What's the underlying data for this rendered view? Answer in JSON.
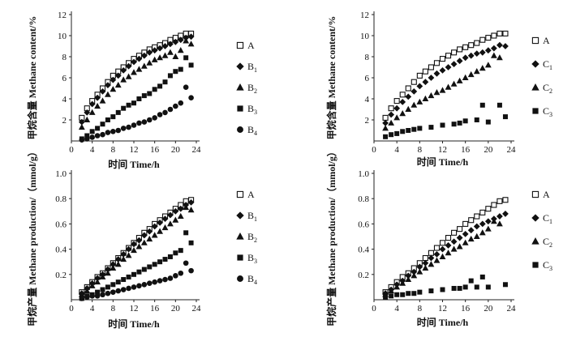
{
  "figure_title": "",
  "markers": {
    "A": "open-square",
    "B1": "diamond",
    "B2": "triangle",
    "B3": "square",
    "B4": "circle",
    "C1": "diamond",
    "C2": "triangle",
    "C3": "square"
  },
  "colors": {
    "ink": "#111111",
    "axis": "#222222"
  },
  "chart_data": [
    {
      "type": "scatter",
      "id": "content-b",
      "xlabel": "时间  Time/h",
      "ylabel": "甲烷含量  Methane content/%",
      "xlim": [
        0,
        24
      ],
      "ylim": [
        0,
        12
      ],
      "xticks": [
        0,
        4,
        8,
        12,
        16,
        20,
        24
      ],
      "yticks": [
        2,
        4,
        6,
        8,
        10,
        12
      ],
      "x_tick_labels": [
        "0",
        "4",
        "8",
        "12",
        "16",
        "20",
        "24"
      ],
      "y_tick_labels": [
        "2",
        "4",
        "6",
        "8",
        "10",
        "12"
      ],
      "grid": false,
      "legend": "right",
      "series": [
        {
          "name": "A",
          "base": "A",
          "sub": "",
          "marker": "open-square",
          "x": [
            2,
            3,
            4,
            5,
            6,
            7,
            8,
            9,
            10,
            11,
            12,
            13,
            14,
            15,
            16,
            17,
            18,
            19,
            20,
            21,
            22,
            23
          ],
          "y": [
            2.2,
            3.1,
            3.8,
            4.4,
            5.0,
            5.6,
            6.2,
            6.6,
            7.0,
            7.4,
            7.8,
            8.1,
            8.4,
            8.7,
            8.9,
            9.1,
            9.3,
            9.6,
            9.8,
            10.0,
            10.2,
            10.2
          ]
        },
        {
          "name": "B1",
          "base": "B",
          "sub": "1",
          "marker": "diamond",
          "x": [
            2,
            3,
            4,
            5,
            6,
            7,
            8,
            9,
            10,
            11,
            12,
            13,
            14,
            15,
            16,
            17,
            18,
            19,
            20,
            21,
            22,
            23
          ],
          "y": [
            1.8,
            2.7,
            3.5,
            4.1,
            4.7,
            5.3,
            5.8,
            6.2,
            6.7,
            7.1,
            7.5,
            7.8,
            8.1,
            8.4,
            8.6,
            8.8,
            9.0,
            9.2,
            9.4,
            9.6,
            9.8,
            9.9
          ]
        },
        {
          "name": "B2",
          "base": "B",
          "sub": "2",
          "marker": "triangle",
          "x": [
            2,
            3,
            4,
            5,
            6,
            7,
            8,
            9,
            10,
            11,
            12,
            13,
            14,
            15,
            16,
            17,
            18,
            19,
            20,
            21,
            22,
            23
          ],
          "y": [
            1.3,
            2.0,
            2.7,
            3.3,
            3.8,
            4.4,
            4.9,
            5.3,
            5.8,
            6.1,
            6.5,
            6.8,
            7.1,
            7.4,
            7.7,
            7.9,
            8.1,
            8.4,
            8.0,
            8.6,
            9.5,
            9.2
          ]
        },
        {
          "name": "B3",
          "base": "B",
          "sub": "3",
          "marker": "square",
          "x": [
            2,
            3,
            4,
            5,
            6,
            7,
            8,
            9,
            10,
            11,
            12,
            13,
            14,
            15,
            16,
            17,
            18,
            19,
            20,
            21,
            22,
            23
          ],
          "y": [
            0.2,
            0.5,
            0.9,
            1.2,
            1.6,
            2.0,
            2.3,
            2.7,
            3.1,
            3.4,
            3.6,
            4.0,
            4.3,
            4.5,
            4.9,
            5.2,
            5.6,
            6.2,
            6.6,
            6.8,
            7.9,
            7.2
          ]
        },
        {
          "name": "B4",
          "base": "B",
          "sub": "4",
          "marker": "circle",
          "x": [
            2,
            3,
            4,
            5,
            6,
            7,
            8,
            9,
            10,
            11,
            12,
            13,
            14,
            15,
            16,
            17,
            18,
            19,
            20,
            21,
            22,
            23
          ],
          "y": [
            0.1,
            0.2,
            0.35,
            0.5,
            0.6,
            0.8,
            0.9,
            1.0,
            1.2,
            1.3,
            1.5,
            1.7,
            1.8,
            2.0,
            2.2,
            2.5,
            2.7,
            3.0,
            3.3,
            3.6,
            5.1,
            4.1
          ]
        }
      ]
    },
    {
      "type": "scatter",
      "id": "content-c",
      "xlabel": "时间  Time/h",
      "ylabel": "甲烷含量  Methane content/%",
      "xlim": [
        0,
        24
      ],
      "ylim": [
        0,
        12
      ],
      "xticks": [
        0,
        4,
        8,
        12,
        16,
        20,
        24
      ],
      "yticks": [
        2,
        4,
        6,
        8,
        10,
        12
      ],
      "x_tick_labels": [
        "0",
        "4",
        "8",
        "12",
        "16",
        "20",
        "24"
      ],
      "y_tick_labels": [
        "2",
        "4",
        "6",
        "8",
        "10",
        "12"
      ],
      "grid": false,
      "legend": "right",
      "series": [
        {
          "name": "A",
          "base": "A",
          "sub": "",
          "marker": "open-square",
          "x": [
            2,
            3,
            4,
            5,
            6,
            7,
            8,
            9,
            10,
            11,
            12,
            13,
            14,
            15,
            16,
            17,
            18,
            19,
            20,
            21,
            22,
            23
          ],
          "y": [
            2.2,
            3.1,
            3.8,
            4.4,
            5.0,
            5.6,
            6.2,
            6.6,
            7.0,
            7.4,
            7.8,
            8.1,
            8.4,
            8.7,
            8.9,
            9.1,
            9.3,
            9.6,
            9.8,
            10.0,
            10.2,
            10.2
          ]
        },
        {
          "name": "C1",
          "base": "C",
          "sub": "1",
          "marker": "diamond",
          "x": [
            2,
            3,
            4,
            5,
            6,
            7,
            8,
            9,
            10,
            11,
            12,
            13,
            14,
            15,
            16,
            17,
            18,
            19,
            20,
            21,
            22,
            23
          ],
          "y": [
            1.7,
            2.5,
            3.1,
            3.7,
            4.2,
            4.7,
            5.2,
            5.6,
            6.0,
            6.4,
            6.7,
            7.0,
            7.3,
            7.6,
            7.9,
            8.1,
            8.3,
            8.4,
            8.6,
            8.8,
            9.1,
            9.0
          ]
        },
        {
          "name": "C2",
          "base": "C",
          "sub": "2",
          "marker": "triangle",
          "x": [
            2,
            3,
            4,
            5,
            6,
            7,
            8,
            9,
            10,
            11,
            12,
            13,
            14,
            15,
            16,
            17,
            18,
            19,
            20,
            21,
            22
          ],
          "y": [
            1.2,
            1.7,
            2.2,
            2.6,
            3.0,
            3.4,
            3.7,
            4.0,
            4.3,
            4.6,
            4.8,
            5.1,
            5.4,
            5.7,
            6.0,
            6.3,
            6.6,
            6.9,
            7.2,
            8.1,
            7.9
          ]
        },
        {
          "name": "C3",
          "base": "C",
          "sub": "3",
          "marker": "square",
          "x": [
            2,
            3,
            4,
            5,
            6,
            7,
            8,
            10,
            12,
            14,
            15,
            16,
            18,
            19,
            20,
            22,
            23
          ],
          "y": [
            0.4,
            0.6,
            0.7,
            0.9,
            1.0,
            1.1,
            1.2,
            1.3,
            1.5,
            1.6,
            1.7,
            1.9,
            2.0,
            3.4,
            1.8,
            3.4,
            2.3
          ]
        }
      ]
    },
    {
      "type": "scatter",
      "id": "production-b",
      "xlabel": "时间  Time/h",
      "ylabel": "甲烷产量  Methane production/（mmol/g）",
      "xlim": [
        0,
        24
      ],
      "ylim": [
        0,
        1.0
      ],
      "xticks": [
        0,
        4,
        8,
        12,
        16,
        20,
        24
      ],
      "yticks": [
        0.2,
        0.4,
        0.6,
        0.8,
        1.0
      ],
      "x_tick_labels": [
        "0",
        "4",
        "8",
        "12",
        "16",
        "20",
        "24"
      ],
      "y_tick_labels": [
        "0.2",
        "0.4",
        "0.6",
        "0.8",
        "1.0"
      ],
      "grid": false,
      "legend": "right",
      "series": [
        {
          "name": "A",
          "base": "A",
          "sub": "",
          "marker": "open-square",
          "x": [
            2,
            3,
            4,
            5,
            6,
            7,
            8,
            9,
            10,
            11,
            12,
            13,
            14,
            15,
            16,
            17,
            18,
            19,
            20,
            21,
            22,
            23
          ],
          "y": [
            0.06,
            0.1,
            0.14,
            0.18,
            0.21,
            0.25,
            0.29,
            0.33,
            0.37,
            0.41,
            0.45,
            0.49,
            0.53,
            0.56,
            0.6,
            0.63,
            0.66,
            0.69,
            0.72,
            0.75,
            0.78,
            0.79
          ]
        },
        {
          "name": "B1",
          "base": "B",
          "sub": "1",
          "marker": "diamond",
          "x": [
            2,
            3,
            4,
            5,
            6,
            7,
            8,
            9,
            10,
            11,
            12,
            13,
            14,
            15,
            16,
            17,
            18,
            19,
            20,
            21,
            22,
            23
          ],
          "y": [
            0.05,
            0.09,
            0.13,
            0.17,
            0.2,
            0.24,
            0.28,
            0.32,
            0.36,
            0.4,
            0.44,
            0.47,
            0.51,
            0.54,
            0.58,
            0.61,
            0.64,
            0.67,
            0.7,
            0.72,
            0.75,
            0.77
          ]
        },
        {
          "name": "B2",
          "base": "B",
          "sub": "2",
          "marker": "triangle",
          "x": [
            2,
            3,
            4,
            5,
            6,
            7,
            8,
            9,
            10,
            11,
            12,
            13,
            14,
            15,
            16,
            17,
            18,
            19,
            20,
            21,
            22,
            23
          ],
          "y": [
            0.04,
            0.07,
            0.11,
            0.14,
            0.18,
            0.21,
            0.25,
            0.28,
            0.32,
            0.35,
            0.39,
            0.42,
            0.45,
            0.48,
            0.51,
            0.54,
            0.57,
            0.6,
            0.63,
            0.66,
            0.73,
            0.71
          ]
        },
        {
          "name": "B3",
          "base": "B",
          "sub": "3",
          "marker": "square",
          "x": [
            2,
            3,
            4,
            5,
            6,
            7,
            8,
            9,
            10,
            11,
            12,
            13,
            14,
            15,
            16,
            17,
            18,
            19,
            20,
            21,
            22,
            23
          ],
          "y": [
            0.01,
            0.03,
            0.04,
            0.06,
            0.08,
            0.1,
            0.12,
            0.14,
            0.16,
            0.18,
            0.2,
            0.22,
            0.24,
            0.26,
            0.28,
            0.3,
            0.32,
            0.34,
            0.37,
            0.39,
            0.53,
            0.45
          ]
        },
        {
          "name": "B4",
          "base": "B",
          "sub": "4",
          "marker": "circle",
          "x": [
            2,
            3,
            4,
            5,
            6,
            7,
            8,
            9,
            10,
            11,
            12,
            13,
            14,
            15,
            16,
            17,
            18,
            19,
            20,
            21,
            22,
            23
          ],
          "y": [
            0.01,
            0.02,
            0.03,
            0.03,
            0.04,
            0.05,
            0.06,
            0.07,
            0.08,
            0.09,
            0.1,
            0.11,
            0.12,
            0.13,
            0.14,
            0.15,
            0.16,
            0.17,
            0.19,
            0.21,
            0.29,
            0.23
          ]
        }
      ]
    },
    {
      "type": "scatter",
      "id": "production-c",
      "xlabel": "时间  Time/h",
      "ylabel": "甲烷产量  Methane production/（mmol/g）",
      "xlim": [
        0,
        24
      ],
      "ylim": [
        0,
        1.0
      ],
      "xticks": [
        0,
        4,
        8,
        12,
        16,
        20,
        24
      ],
      "yticks": [
        0.2,
        0.4,
        0.6,
        0.8,
        1.0
      ],
      "x_tick_labels": [
        "0",
        "4",
        "8",
        "12",
        "16",
        "20",
        "24"
      ],
      "y_tick_labels": [
        "0.2",
        "0.4",
        "0.6",
        "0.8",
        "1.0"
      ],
      "grid": false,
      "legend": "right",
      "series": [
        {
          "name": "A",
          "base": "A",
          "sub": "",
          "marker": "open-square",
          "x": [
            2,
            3,
            4,
            5,
            6,
            7,
            8,
            9,
            10,
            11,
            12,
            13,
            14,
            15,
            16,
            17,
            18,
            19,
            20,
            21,
            22,
            23
          ],
          "y": [
            0.06,
            0.1,
            0.14,
            0.18,
            0.21,
            0.25,
            0.29,
            0.33,
            0.37,
            0.41,
            0.45,
            0.49,
            0.53,
            0.56,
            0.6,
            0.63,
            0.66,
            0.69,
            0.72,
            0.75,
            0.78,
            0.79
          ]
        },
        {
          "name": "C1",
          "base": "C",
          "sub": "1",
          "marker": "diamond",
          "x": [
            2,
            3,
            4,
            5,
            6,
            7,
            8,
            9,
            10,
            11,
            12,
            13,
            14,
            15,
            16,
            17,
            18,
            19,
            20,
            21,
            22,
            23
          ],
          "y": [
            0.05,
            0.08,
            0.12,
            0.15,
            0.19,
            0.22,
            0.26,
            0.29,
            0.33,
            0.36,
            0.4,
            0.43,
            0.46,
            0.49,
            0.52,
            0.55,
            0.58,
            0.6,
            0.62,
            0.64,
            0.66,
            0.68
          ]
        },
        {
          "name": "C2",
          "base": "C",
          "sub": "2",
          "marker": "triangle",
          "x": [
            2,
            3,
            4,
            5,
            6,
            7,
            8,
            9,
            10,
            11,
            12,
            13,
            14,
            15,
            16,
            17,
            18,
            19,
            20,
            21,
            22
          ],
          "y": [
            0.04,
            0.07,
            0.1,
            0.13,
            0.16,
            0.19,
            0.22,
            0.25,
            0.28,
            0.31,
            0.34,
            0.37,
            0.4,
            0.42,
            0.45,
            0.48,
            0.5,
            0.53,
            0.56,
            0.62,
            0.6
          ]
        },
        {
          "name": "C3",
          "base": "C",
          "sub": "3",
          "marker": "square",
          "x": [
            2,
            3,
            4,
            5,
            6,
            7,
            8,
            10,
            12,
            14,
            15,
            16,
            17,
            18,
            19,
            20,
            23
          ],
          "y": [
            0.02,
            0.03,
            0.04,
            0.04,
            0.05,
            0.05,
            0.06,
            0.07,
            0.08,
            0.09,
            0.09,
            0.1,
            0.15,
            0.1,
            0.18,
            0.1,
            0.12
          ]
        }
      ]
    }
  ]
}
